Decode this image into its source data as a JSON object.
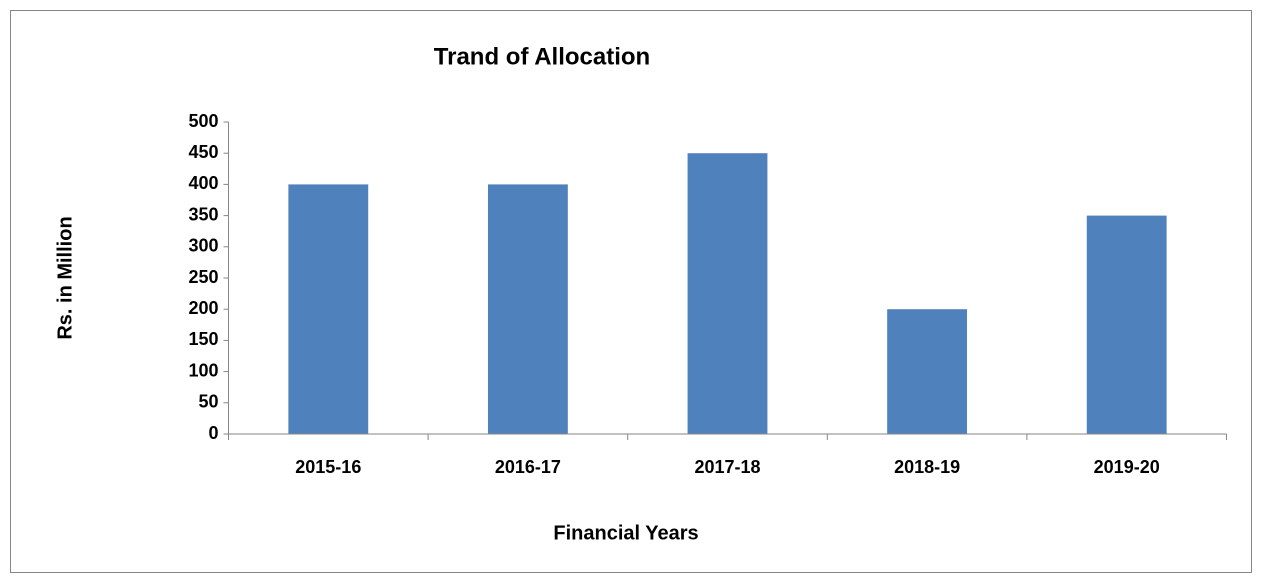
{
  "chart_data": {
    "type": "bar",
    "title": "Trand of Allocation",
    "x_label": "Financial Years",
    "y_label": "Rs. in Million",
    "categories": [
      "2015-16",
      "2016-17",
      "2017-18",
      "2018-19",
      "2019-20"
    ],
    "values": [
      400,
      400,
      450,
      200,
      350
    ],
    "color": "#4f81bd",
    "ylim": [
      0,
      500
    ],
    "yticks": [
      0,
      50,
      100,
      150,
      200,
      250,
      300,
      350,
      400,
      450,
      500
    ],
    "grid": false
  }
}
